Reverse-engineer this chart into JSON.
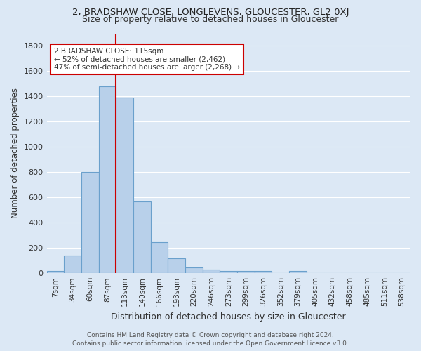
{
  "title1": "2, BRADSHAW CLOSE, LONGLEVENS, GLOUCESTER, GL2 0XJ",
  "title2": "Size of property relative to detached houses in Gloucester",
  "xlabel": "Distribution of detached houses by size in Gloucester",
  "ylabel": "Number of detached properties",
  "footer1": "Contains HM Land Registry data © Crown copyright and database right 2024.",
  "footer2": "Contains public sector information licensed under the Open Government Licence v3.0.",
  "bin_labels": [
    "7sqm",
    "34sqm",
    "60sqm",
    "87sqm",
    "113sqm",
    "140sqm",
    "166sqm",
    "193sqm",
    "220sqm",
    "246sqm",
    "273sqm",
    "299sqm",
    "326sqm",
    "352sqm",
    "379sqm",
    "405sqm",
    "432sqm",
    "458sqm",
    "485sqm",
    "511sqm",
    "538sqm"
  ],
  "bar_values": [
    15,
    140,
    800,
    1480,
    1390,
    570,
    248,
    120,
    45,
    28,
    20,
    18,
    15,
    0,
    20,
    0,
    0,
    0,
    0,
    0,
    0
  ],
  "bar_color": "#b8d0ea",
  "bar_edge_color": "#6aa0cc",
  "red_line_color": "#cc0000",
  "annotation_text": "2 BRADSHAW CLOSE: 115sqm\n← 52% of detached houses are smaller (2,462)\n47% of semi-detached houses are larger (2,268) →",
  "annotation_box_color": "#ffffff",
  "annotation_box_edge": "#cc0000",
  "property_bin_index": 4,
  "ylim": [
    0,
    1900
  ],
  "yticks": [
    0,
    200,
    400,
    600,
    800,
    1000,
    1200,
    1400,
    1600,
    1800
  ],
  "bg_color": "#dce8f5",
  "grid_color": "#ffffff",
  "title1_fontsize": 9.5,
  "title2_fontsize": 9,
  "xlabel_fontsize": 9,
  "ylabel_fontsize": 8.5,
  "tick_fontsize": 7.5,
  "annot_fontsize": 7.5,
  "footer_fontsize": 6.5
}
